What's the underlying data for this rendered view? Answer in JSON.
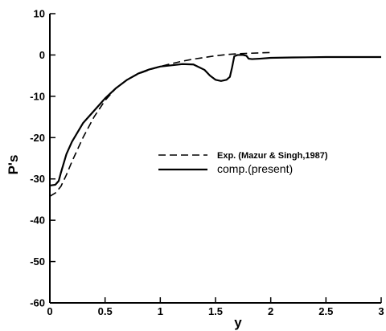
{
  "chart_data": {
    "type": "line",
    "title": "",
    "xlabel": "y",
    "ylabel": "P's",
    "xlim": [
      0,
      3
    ],
    "ylim": [
      -60,
      10
    ],
    "xticks": [
      0,
      0.5,
      1,
      1.5,
      2,
      2.5,
      3
    ],
    "xtick_labels": [
      "0",
      "0.5",
      "1",
      "1.5",
      "2",
      "2.5",
      "3"
    ],
    "yticks": [
      10,
      0,
      -10,
      -20,
      -30,
      -40,
      -50,
      -60
    ],
    "ytick_labels": [
      "10",
      "0",
      "-10",
      "-20",
      "-30",
      "-40",
      "-50",
      "-60"
    ],
    "grid": false,
    "legend_position": "right-middle",
    "series": [
      {
        "name": "Exp. (Mazur & Singh,1987)",
        "style": "dashed",
        "color": "#000000",
        "x": [
          0.0,
          0.05,
          0.1,
          0.15,
          0.2,
          0.3,
          0.4,
          0.5,
          0.6,
          0.7,
          0.8,
          0.9,
          1.0,
          1.1,
          1.2,
          1.3,
          1.4,
          1.5,
          1.6,
          1.7,
          1.8,
          1.9,
          2.0
        ],
        "y": [
          -34.2,
          -33.4,
          -31.8,
          -29.0,
          -25.8,
          -20.0,
          -15.0,
          -11.0,
          -8.0,
          -6.0,
          -4.6,
          -3.6,
          -2.8,
          -2.1,
          -1.5,
          -1.0,
          -0.6,
          -0.2,
          0.1,
          0.3,
          0.4,
          0.5,
          0.6
        ]
      },
      {
        "name": "comp.(present)",
        "style": "solid",
        "color": "#000000",
        "x": [
          0.0,
          0.05,
          0.08,
          0.1,
          0.15,
          0.2,
          0.3,
          0.4,
          0.5,
          0.6,
          0.7,
          0.8,
          0.9,
          1.0,
          1.1,
          1.2,
          1.3,
          1.4,
          1.45,
          1.5,
          1.55,
          1.6,
          1.63,
          1.65,
          1.67,
          1.7,
          1.75,
          1.78,
          1.8,
          1.83,
          1.9,
          2.0,
          2.2,
          2.5,
          2.8,
          3.0
        ],
        "y": [
          -31.6,
          -31.4,
          -30.5,
          -28.5,
          -24.0,
          -21.0,
          -16.5,
          -13.5,
          -10.5,
          -8.0,
          -6.0,
          -4.5,
          -3.5,
          -2.8,
          -2.5,
          -2.2,
          -2.3,
          -3.6,
          -5.0,
          -6.0,
          -6.3,
          -6.0,
          -5.3,
          -3.0,
          -0.3,
          0.0,
          0.0,
          -0.2,
          -0.9,
          -1.0,
          -0.9,
          -0.7,
          -0.6,
          -0.5,
          -0.5,
          -0.5
        ]
      }
    ]
  }
}
